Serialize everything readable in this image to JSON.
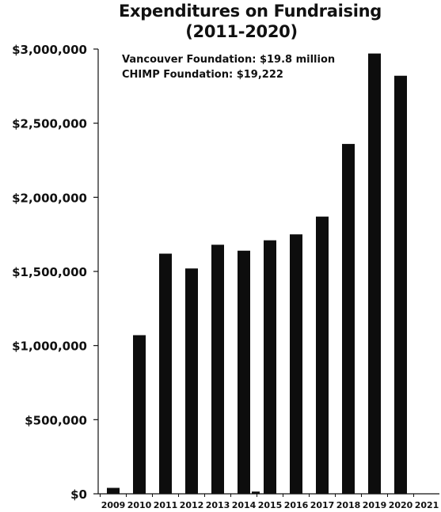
{
  "chart_data": {
    "type": "bar",
    "title_lines": [
      "Expenditures on Fundraising",
      "(2011-2020)"
    ],
    "xlabel": "",
    "ylabel": "",
    "categories": [
      "2009",
      "2010",
      "2011",
      "2012",
      "2013",
      "2014",
      "2015",
      "2016",
      "2017",
      "2018",
      "2019",
      "2020",
      "2021"
    ],
    "series": [
      {
        "values": [
          40000,
          1070000,
          1620000,
          1520000,
          1680000,
          1640000,
          1710000,
          1750000,
          1870000,
          2360000,
          2970000,
          2820000,
          0
        ],
        "secondary_values": [
          0,
          0,
          0,
          0,
          0,
          15000,
          0,
          0,
          0,
          0,
          0,
          0,
          0
        ]
      }
    ],
    "yticks": [
      {
        "value": 0,
        "label": "$0"
      },
      {
        "value": 500000,
        "label": "$500,000"
      },
      {
        "value": 1000000,
        "label": "$1,000,000"
      },
      {
        "value": 1500000,
        "label": "$1,500,000"
      },
      {
        "value": 2000000,
        "label": "$2,000,000"
      },
      {
        "value": 2500000,
        "label": "$2,500,000"
      },
      {
        "value": 3000000,
        "label": "$3,000,000"
      }
    ],
    "ylim": [
      0,
      3000000
    ],
    "grid": false,
    "annotations": [
      "Vancouver Foundation: $19.8 million",
      "CHIMP Foundation: $19,222"
    ],
    "colors": {
      "bar": "#0d0d0d",
      "axis": "#111111",
      "text": "#111111"
    }
  }
}
